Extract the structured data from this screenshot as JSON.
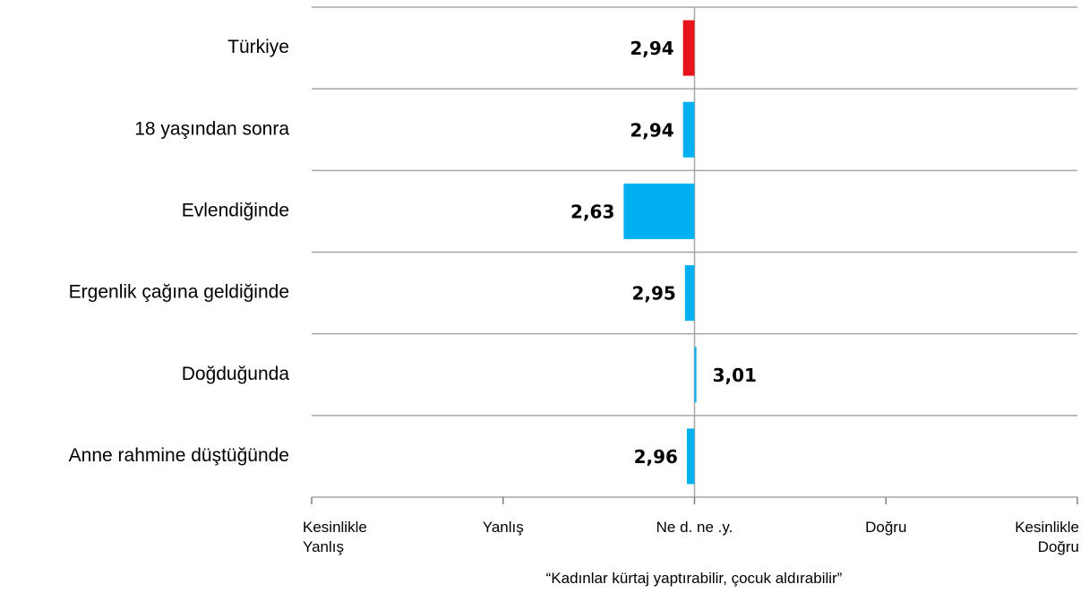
{
  "chart_data": {
    "type": "bar",
    "orientation": "horizontal",
    "xlabel": "“Kadınlar kürtaj yaptırabilir, çocuk aldırabilir”",
    "categories": [
      "Türkiye",
      "18 yaşından sonra",
      "Evlendiğinde",
      "Ergenlik çağına geldiğinde",
      "Doğduğunda",
      "Anne rahmine düştüğünde"
    ],
    "values": [
      2.94,
      2.94,
      2.63,
      2.95,
      3.01,
      2.96
    ],
    "value_labels": [
      "2,94",
      "2,94",
      "2,63",
      "2,95",
      "3,01",
      "2,96"
    ],
    "colors": [
      "#e8141b",
      "#00b0f0",
      "#00b0f0",
      "#00b0f0",
      "#00b0f0",
      "#00b0f0"
    ],
    "baseline": 3,
    "xlim": [
      1,
      5
    ],
    "xticks": [
      {
        "value": 1,
        "label": "Kesinlikle Yanlış"
      },
      {
        "value": 2,
        "label": "Yanlış"
      },
      {
        "value": 3,
        "label": "Ne d. ne .y."
      },
      {
        "value": 4,
        "label": "Doğru"
      },
      {
        "value": 5,
        "label": "Kesinlikle Doğru"
      }
    ]
  }
}
